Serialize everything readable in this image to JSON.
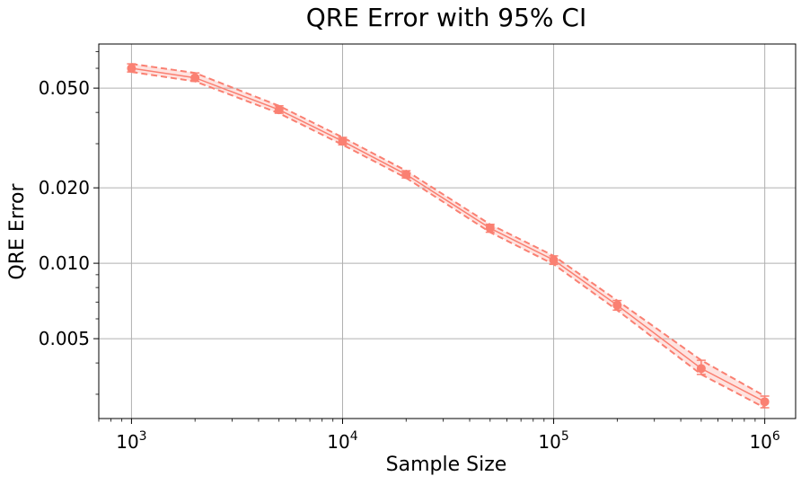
{
  "chart_data": {
    "type": "line",
    "title": "QRE Error with 95% CI",
    "xlabel": "Sample Size",
    "ylabel": "QRE Error",
    "x_scale": "log",
    "y_scale": "log",
    "xlim": [
      700,
      1400000
    ],
    "ylim": [
      0.0024,
      0.075
    ],
    "grid": true,
    "x_major_ticks": [
      1000,
      10000,
      100000,
      1000000
    ],
    "x_tick_labels": [
      {
        "base": "10",
        "exp": "3"
      },
      {
        "base": "10",
        "exp": "4"
      },
      {
        "base": "10",
        "exp": "5"
      },
      {
        "base": "10",
        "exp": "6"
      }
    ],
    "y_major_ticks": [
      0.005,
      0.01,
      0.02,
      0.05
    ],
    "y_tick_labels": [
      "0.005",
      "0.010",
      "0.020",
      "0.050"
    ],
    "color": "#fa8072",
    "series": [
      {
        "x": [
          1000,
          2000,
          5000,
          10000,
          20000,
          50000,
          100000,
          200000,
          500000,
          1000000
        ],
        "y": [
          0.06,
          0.055,
          0.041,
          0.0307,
          0.0226,
          0.0138,
          0.0103,
          0.0068,
          0.0038,
          0.0028
        ],
        "ci_low": [
          0.058,
          0.0532,
          0.0397,
          0.0297,
          0.0219,
          0.0133,
          0.0099,
          0.0065,
          0.0036,
          0.00265
        ],
        "ci_high": [
          0.0625,
          0.0575,
          0.0425,
          0.0318,
          0.0234,
          0.0143,
          0.0107,
          0.0071,
          0.0041,
          0.00295
        ]
      }
    ]
  }
}
